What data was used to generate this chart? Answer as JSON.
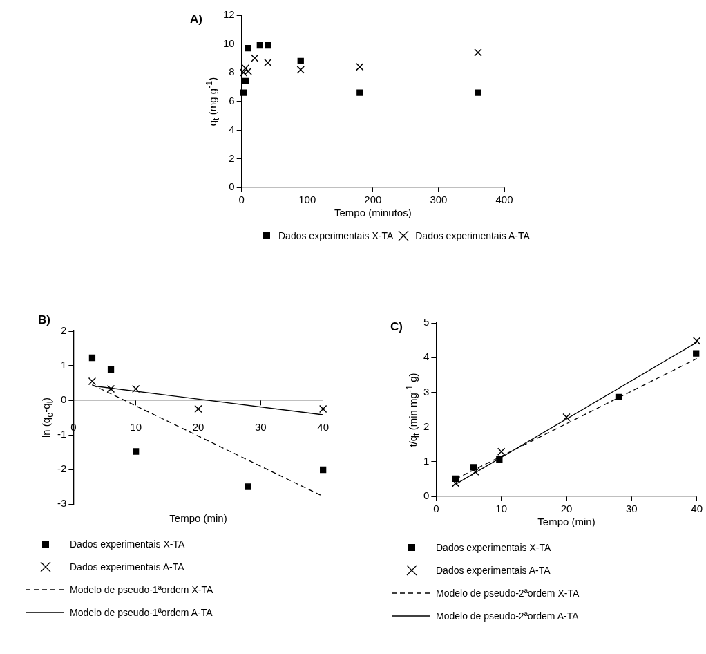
{
  "chart_data": [
    {
      "type": "scatter",
      "title": "A)",
      "xlabel": "Tempo (minutos)",
      "ylabel": "q$_{t}$ (mg g$^{-1}$)",
      "xlim": [
        0,
        400
      ],
      "xticks": [
        0,
        100,
        200,
        300,
        400
      ],
      "ylim": [
        0,
        12
      ],
      "yticks": [
        0,
        2,
        4,
        6,
        8,
        10,
        12
      ],
      "legend": "bottom",
      "series": [
        {
          "name": "Dados experimentais X-TA",
          "color": "#000000",
          "marker": "square",
          "x": [
            3,
            6,
            10,
            28,
            40,
            90,
            180,
            360
          ],
          "values": [
            6.6,
            7.4,
            9.7,
            9.9,
            9.9,
            8.8,
            6.6,
            6.6
          ]
        },
        {
          "name": "Dados experimentais A-TA",
          "color": "#000000",
          "marker": "cross",
          "x": [
            3,
            6,
            10,
            20,
            40,
            90,
            180,
            360
          ],
          "values": [
            8.0,
            8.3,
            8.1,
            9.0,
            8.7,
            8.2,
            8.4,
            9.4
          ]
        }
      ]
    },
    {
      "type": "scatter",
      "title": "B)",
      "xlabel": "Tempo (min)",
      "ylabel": "ln (q$_{e}$-q$_{t}$)",
      "xlim": [
        0,
        40
      ],
      "xticks": [
        0,
        10,
        20,
        30,
        40
      ],
      "ylim": [
        -3,
        2
      ],
      "yticks": [
        -3,
        -2,
        -1,
        0,
        1,
        2
      ],
      "legend": "bottom",
      "series": [
        {
          "name": "Dados experimentais X-TA",
          "color": "#000000",
          "marker": "square",
          "x": [
            3,
            6,
            10,
            28,
            40
          ],
          "values": [
            1.23,
            0.89,
            -1.48,
            -2.5,
            -2.01
          ]
        },
        {
          "name": "Dados experimentais A-TA",
          "color": "#000000",
          "marker": "cross",
          "x": [
            3,
            6,
            10,
            20,
            40
          ],
          "values": [
            0.55,
            0.33,
            0.33,
            -0.25,
            -0.25
          ]
        },
        {
          "name": "Modelo de pseudo-1ªordem X-TA",
          "type": "line",
          "color": "#000000",
          "marker": "none",
          "line_style": "dashed",
          "x": [
            3,
            40
          ],
          "values": [
            0.45,
            -2.78
          ]
        },
        {
          "name": "Modelo de pseudo-1ªordem A-TA",
          "type": "line",
          "color": "#000000",
          "marker": "none",
          "line_style": "solid",
          "x": [
            3,
            40
          ],
          "values": [
            0.42,
            -0.42
          ]
        }
      ]
    },
    {
      "type": "scatter",
      "title": "C)",
      "xlabel": "Tempo (min)",
      "ylabel": "t/q$_{t}$ (min mg$^{-1}$ g)",
      "xlim": [
        0,
        40
      ],
      "xticks": [
        0,
        10,
        20,
        30,
        40
      ],
      "ylim": [
        0,
        5
      ],
      "yticks": [
        0,
        1,
        2,
        3,
        4,
        5
      ],
      "legend": "bottom",
      "series": [
        {
          "name": "Dados experimentais X-TA",
          "color": "#000000",
          "marker": "square",
          "x": [
            3,
            5.75,
            9.7,
            28,
            39.9
          ],
          "values": [
            0.51,
            0.84,
            1.07,
            2.86,
            4.12
          ]
        },
        {
          "name": "Dados experimentais A-TA",
          "color": "#000000",
          "marker": "cross",
          "x": [
            3,
            6,
            10,
            20,
            40
          ],
          "values": [
            0.38,
            0.71,
            1.29,
            2.28,
            4.48
          ]
        },
        {
          "name": "Modelo de pseudo-2ªordem X-TA",
          "type": "line",
          "color": "#000000",
          "marker": "none",
          "line_style": "dashed",
          "x": [
            3,
            40
          ],
          "values": [
            0.5,
            3.97
          ]
        },
        {
          "name": "Modelo de pseudo-2ªordem A-TA",
          "type": "line",
          "color": "#000000",
          "marker": "none",
          "line_style": "solid",
          "x": [
            3,
            40
          ],
          "values": [
            0.35,
            4.44
          ]
        }
      ]
    }
  ]
}
